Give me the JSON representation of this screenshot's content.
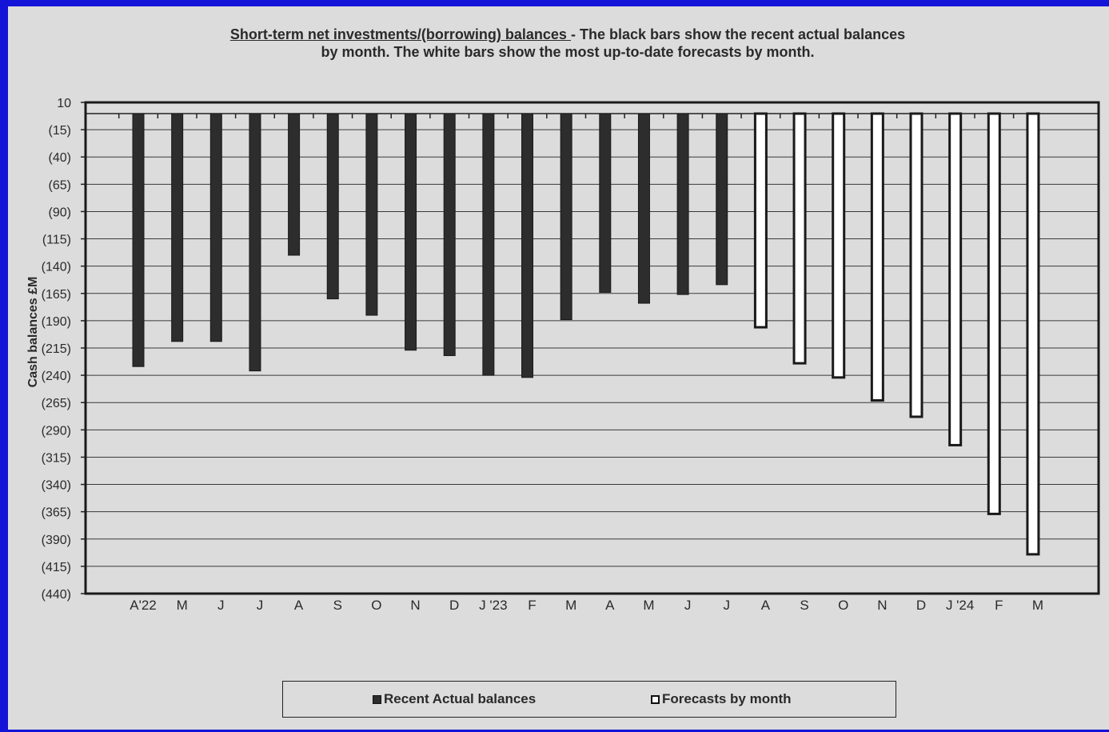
{
  "title": {
    "underlined": "Short-term net investments/(borrowing) balances ",
    "rest": "- The black bars show the recent actual balances",
    "line2": "by month.  The white bars show the most up-to-date forecasts by month."
  },
  "legend": {
    "actual_label": "Recent Actual balances",
    "forecast_label": "Forecasts by month"
  },
  "colors": {
    "frame_border": "#1414d8",
    "background": "#dcdcdc",
    "actual_bar": "#2d2d2d",
    "forecast_bar": "#ffffff"
  },
  "chart_data": {
    "type": "bar",
    "title": "Short-term net investments/(borrowing) balances - The black bars show the recent actual balances by month.  The white bars show the most up-to-date forecasts by month.",
    "xlabel": "",
    "ylabel": "Cash balances £M",
    "ylim": [
      -440,
      10
    ],
    "yticks": [
      10,
      -15,
      -40,
      -65,
      -90,
      -115,
      -140,
      -165,
      -190,
      -215,
      -240,
      -265,
      -290,
      -315,
      -340,
      -365,
      -390,
      -415,
      -440
    ],
    "ytick_labels": [
      "10",
      "(15)",
      "(40)",
      "(65)",
      "(90)",
      "(115)",
      "(140)",
      "(165)",
      "(190)",
      "(215)",
      "(240)",
      "(265)",
      "(290)",
      "(315)",
      "(340)",
      "(365)",
      "(390)",
      "(415)",
      "(440)"
    ],
    "grid": true,
    "legend_position": "bottom",
    "categories": [
      "A'22",
      "M",
      "J",
      "J",
      "A",
      "S",
      "O",
      "N",
      "D",
      "J '23",
      "F",
      "M",
      "A",
      "M",
      "J",
      "J",
      "A",
      "S",
      "O",
      "N",
      "D",
      "J '24",
      "F",
      "M"
    ],
    "series": [
      {
        "name": "Recent Actual balances",
        "values": [
          -232,
          -209,
          -209,
          -236,
          -130,
          -170,
          -185,
          -217,
          -222,
          -240,
          -242,
          -189,
          -164,
          -174,
          -166,
          -157,
          null,
          null,
          null,
          null,
          null,
          null,
          null,
          null
        ]
      },
      {
        "name": "Forecasts by month",
        "values": [
          null,
          null,
          null,
          null,
          null,
          null,
          null,
          null,
          null,
          null,
          null,
          null,
          null,
          null,
          null,
          null,
          -196,
          -229,
          -242,
          -263,
          -278,
          -304,
          -367,
          -404
        ]
      }
    ]
  }
}
